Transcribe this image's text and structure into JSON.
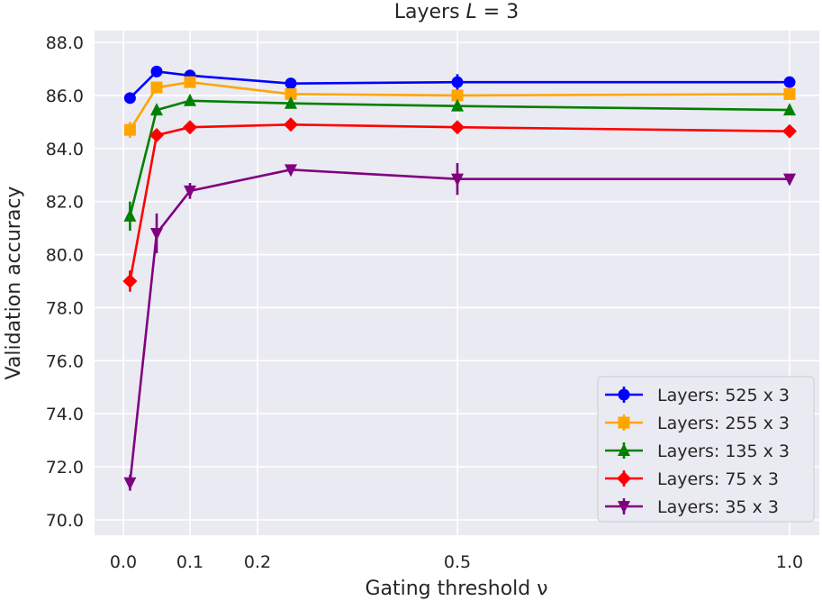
{
  "chart_data": {
    "type": "line",
    "title_prefix": "Layers ",
    "title_var": "L",
    "title_suffix": " = 3",
    "xlabel": "Gating threshold ν",
    "ylabel": "Validation accuracy",
    "xticks": [
      0.0,
      0.1,
      0.2,
      0.5,
      1.0
    ],
    "xtick_labels": [
      "0.0",
      "0.1",
      "0.2",
      "0.5",
      "1.0"
    ],
    "yticks": [
      70.0,
      72.0,
      74.0,
      76.0,
      78.0,
      80.0,
      82.0,
      84.0,
      86.0,
      88.0
    ],
    "ytick_labels": [
      "70.0",
      "72.0",
      "74.0",
      "76.0",
      "78.0",
      "80.0",
      "82.0",
      "84.0",
      "86.0",
      "88.0"
    ],
    "xlim": [
      -0.05,
      1.05
    ],
    "ylim": [
      69.6,
      88.5
    ],
    "grid": true,
    "legend_position": "lower-right",
    "x": [
      0.01,
      0.05,
      0.1,
      0.25,
      0.5,
      1.0
    ],
    "series": [
      {
        "name": "Layers: 525 x 3",
        "color": "#0000ff",
        "marker": "circle",
        "values": [
          85.9,
          86.9,
          86.75,
          86.45,
          86.5,
          86.5
        ],
        "errors": [
          0.0,
          0.0,
          0.0,
          0.0,
          0.3,
          0.0
        ]
      },
      {
        "name": "Layers: 255 x 3",
        "color": "#ffa500",
        "marker": "square",
        "values": [
          84.7,
          86.3,
          86.5,
          86.05,
          86.0,
          86.05
        ],
        "errors": [
          0.3,
          0.0,
          0.0,
          0.0,
          0.0,
          0.0
        ]
      },
      {
        "name": "Layers: 135 x 3",
        "color": "#008000",
        "marker": "triangle-up",
        "values": [
          81.45,
          85.45,
          85.8,
          85.7,
          85.6,
          85.45
        ],
        "errors": [
          0.55,
          0.0,
          0.0,
          0.0,
          0.0,
          0.0
        ]
      },
      {
        "name": "Layers: 75 x 3",
        "color": "#ff0000",
        "marker": "diamond",
        "values": [
          79.0,
          84.5,
          84.8,
          84.9,
          84.8,
          84.65
        ],
        "errors": [
          0.4,
          0.0,
          0.0,
          0.0,
          0.0,
          0.0
        ]
      },
      {
        "name": "Layers: 35 x 3",
        "color": "#800080",
        "marker": "triangle-down",
        "values": [
          71.4,
          80.8,
          82.4,
          83.2,
          82.85,
          82.85
        ],
        "errors": [
          0.3,
          0.75,
          0.3,
          0.0,
          0.6,
          0.0
        ]
      }
    ]
  }
}
